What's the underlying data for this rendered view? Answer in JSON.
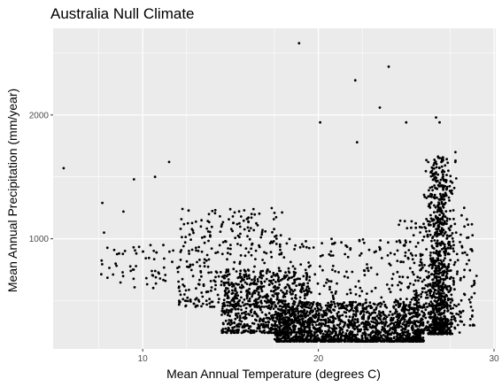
{
  "chart_data": {
    "type": "scatter",
    "title": "Australia Null Climate",
    "xlabel": "Mean Annual Temperature (degrees C)",
    "ylabel": "Mean Annual Precipitation (mm/year)",
    "xlim": [
      4.9,
      30.1
    ],
    "ylim": [
      110,
      2700
    ],
    "x_ticks": [
      10,
      20,
      30
    ],
    "y_ticks": [
      1000,
      2000
    ],
    "grid": true,
    "legend": "none",
    "point_color": "#000000",
    "panel_background": "#ebebeb",
    "grid_color": "#ffffff",
    "notable_points": [
      {
        "x": 5.5,
        "y": 1570
      },
      {
        "x": 9.5,
        "y": 1480
      },
      {
        "x": 10.7,
        "y": 1500
      },
      {
        "x": 11.5,
        "y": 1620
      },
      {
        "x": 18.9,
        "y": 2580
      },
      {
        "x": 20.1,
        "y": 1940
      },
      {
        "x": 22.1,
        "y": 2280
      },
      {
        "x": 22.2,
        "y": 1780
      },
      {
        "x": 23.5,
        "y": 2060
      },
      {
        "x": 24.0,
        "y": 2390
      },
      {
        "x": 25.0,
        "y": 1940
      },
      {
        "x": 26.7,
        "y": 1980
      },
      {
        "x": 26.9,
        "y": 1940
      },
      {
        "x": 7.7,
        "y": 1290
      },
      {
        "x": 7.8,
        "y": 1050
      },
      {
        "x": 8.9,
        "y": 1220
      },
      {
        "x": 27.8,
        "y": 1700
      },
      {
        "x": 28.3,
        "y": 1250
      },
      {
        "x": 29.0,
        "y": 700
      }
    ],
    "distribution_summary": {
      "description_of_density": [
        {
          "x_range": [
            7.5,
            12
          ],
          "y_range": [
            600,
            950
          ]
        },
        {
          "x_range": [
            12,
            17
          ],
          "y_range": [
            450,
            1250
          ]
        },
        {
          "x_range": [
            15,
            19
          ],
          "y_range": [
            250,
            700
          ]
        },
        {
          "x_range": [
            18,
            26
          ],
          "y_range": [
            160,
            450
          ]
        },
        {
          "x_range": [
            25.5,
            28.5
          ],
          "y_range": [
            250,
            1700
          ]
        }
      ]
    }
  }
}
